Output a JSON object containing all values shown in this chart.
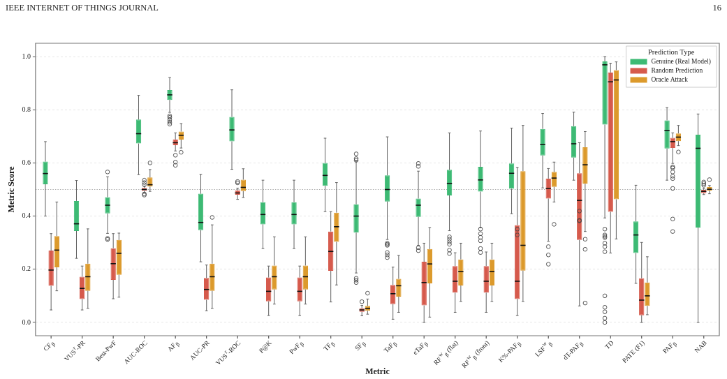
{
  "chart_data": {
    "type": "box",
    "annotations": [
      "IEEE INTERNET OF THINGS JOURNAL",
      "16"
    ],
    "xlabel": "Metric",
    "ylabel": "Metric Score",
    "legend_title": "Prediction Type",
    "legend": "top right",
    "grid": "y",
    "categories": [
      "CF$_{β}$",
      "VUS$^{r}$-PR",
      "Best-PwF",
      "AUC-ROC",
      "AF$_{β}$",
      "AUC-PR",
      "VUS$^{r}$-ROC",
      "P@K",
      "PwF$_{β}$",
      "TF$_{β}$",
      "SF$_{β}$",
      "TaF$_{β}$",
      "eTaF$_{β}$",
      "RF$^{w}$$_{β}$ (flat)",
      "RF$^{w}$$_{β}$ (front)",
      "K%-PAF$_{β}$",
      "LSF$^{w}$$_{β}$",
      "dT-PAF$_{β}$",
      "TD",
      "PATE (F1)",
      "PAF$_{β}$",
      "NAB"
    ],
    "ylim": [
      -0.05,
      1.05
    ],
    "yticks": [
      {
        "value": 0,
        "label": "0.0"
      },
      {
        "value": 0.2,
        "label": "0.2"
      },
      {
        "value": 0.4,
        "label": "0.4"
      },
      {
        "value": 0.6,
        "label": "0.6"
      },
      {
        "value": 0.8,
        "label": "0.8"
      },
      {
        "value": 1,
        "label": "1.0"
      }
    ],
    "ref_lines": [
      {
        "axis": "y",
        "value": 0.5,
        "color": "#b0b0b0",
        "line_style": "dotted"
      }
    ],
    "series": [
      {
        "name": "Genuine (Real Model)",
        "color": "#3dba74",
        "boxes": [
          {
            "low": 0.4,
            "q1": 0.52,
            "median": 0.56,
            "q3": 0.605,
            "high": 0.68
          },
          {
            "low": 0.241,
            "q1": 0.344,
            "median": 0.371,
            "q3": 0.457,
            "high": 0.534
          },
          {
            "low": 0.335,
            "q1": 0.41,
            "median": 0.441,
            "q3": 0.471,
            "high": 0.548,
            "outliers": [
              0.566,
              0.316,
              0.312
            ]
          },
          {
            "low": 0.556,
            "q1": 0.673,
            "median": 0.71,
            "q3": 0.763,
            "high": 0.854
          },
          {
            "low": 0.79,
            "q1": 0.837,
            "median": 0.856,
            "q3": 0.874,
            "high": 0.921,
            "outliers": [
              0.777,
              0.771,
              0.762,
              0.753,
              0.746
            ]
          },
          {
            "low": 0.228,
            "q1": 0.347,
            "median": 0.376,
            "q3": 0.484,
            "high": 0.557
          },
          {
            "low": 0.576,
            "q1": 0.681,
            "median": 0.724,
            "q3": 0.773,
            "high": 0.875
          },
          {
            "low": 0.278,
            "q1": 0.369,
            "median": 0.406,
            "q3": 0.452,
            "high": 0.535
          },
          {
            "low": 0.278,
            "q1": 0.369,
            "median": 0.406,
            "q3": 0.452,
            "high": 0.535
          },
          {
            "low": 0.417,
            "q1": 0.514,
            "median": 0.553,
            "q3": 0.6,
            "high": 0.693
          },
          {
            "low": 0.186,
            "q1": 0.338,
            "median": 0.4,
            "q3": 0.444,
            "high": 0.607,
            "outliers": [
              0.634,
              0.616,
              0.61,
              0.166,
              0.159,
              0.15
            ]
          },
          {
            "low": 0.312,
            "q1": 0.455,
            "median": 0.5,
            "q3": 0.553,
            "high": 0.698,
            "outliers": [
              0.298,
              0.294,
              0.29,
              0.263,
              0.254,
              0.244
            ]
          },
          {
            "low": 0.29,
            "q1": 0.397,
            "median": 0.441,
            "q3": 0.466,
            "high": 0.569,
            "outliers": [
              0.598,
              0.587,
              0.281,
              0.27
            ]
          },
          {
            "low": 0.345,
            "q1": 0.478,
            "median": 0.523,
            "q3": 0.574,
            "high": 0.713,
            "outliers": [
              0.322,
              0.313,
              0.303,
              0.294,
              0.272,
              0.259
            ]
          },
          {
            "low": 0.356,
            "q1": 0.492,
            "median": 0.536,
            "q3": 0.585,
            "high": 0.72,
            "outliers": [
              0.351,
              0.334,
              0.32,
              0.307,
              0.278,
              0.263
            ]
          },
          {
            "low": 0.409,
            "q1": 0.503,
            "median": 0.561,
            "q3": 0.598,
            "high": 0.731
          },
          {
            "low": 0.506,
            "q1": 0.628,
            "median": 0.669,
            "q3": 0.728,
            "high": 0.786
          },
          {
            "low": 0.535,
            "q1": 0.62,
            "median": 0.672,
            "q3": 0.738,
            "high": 0.791
          },
          {
            "low": 0.393,
            "q1": 0.744,
            "median": 0.969,
            "q3": 0.982,
            "high": 1.0,
            "outliers": [
              0.351,
              0.329,
              0.324,
              0.319,
              0.298,
              0.285,
              0.266,
              0.1,
              0.057,
              0.04,
              0.016,
              0.0
            ]
          },
          {
            "low": 0.147,
            "q1": 0.261,
            "median": 0.329,
            "q3": 0.38,
            "high": 0.516
          },
          {
            "low": 0.535,
            "q1": 0.654,
            "median": 0.722,
            "q3": 0.76,
            "high": 0.808
          },
          {
            "low": 0.0,
            "q1": 0.357,
            "median": 0.655,
            "q3": 0.706,
            "high": 0.784
          }
        ]
      },
      {
        "name": "Random Prediction",
        "color": "#d65a4c",
        "boxes": [
          {
            "low": 0.047,
            "q1": 0.138,
            "median": 0.197,
            "q3": 0.27,
            "high": 0.334
          },
          {
            "low": 0.047,
            "q1": 0.088,
            "median": 0.128,
            "q3": 0.172,
            "high": 0.212
          },
          {
            "low": 0.089,
            "q1": 0.16,
            "median": 0.221,
            "q3": 0.279,
            "high": 0.334
          },
          {
            "low": 0.488,
            "q1": 0.495,
            "median": 0.5,
            "q3": 0.506,
            "high": 0.513,
            "outliers": [
              0.535,
              0.526,
              0.518,
              0.483,
              0.479
            ]
          },
          {
            "low": 0.645,
            "q1": 0.667,
            "median": 0.676,
            "q3": 0.688,
            "high": 0.713,
            "outliers": [
              0.629,
              0.603,
              0.591
            ]
          },
          {
            "low": 0.044,
            "q1": 0.085,
            "median": 0.124,
            "q3": 0.167,
            "high": 0.216
          },
          {
            "low": 0.463,
            "q1": 0.48,
            "median": 0.487,
            "q3": 0.497,
            "high": 0.505,
            "outliers": [
              0.53,
              0.525
            ]
          },
          {
            "low": 0.026,
            "q1": 0.079,
            "median": 0.117,
            "q3": 0.169,
            "high": 0.212
          },
          {
            "low": 0.026,
            "q1": 0.079,
            "median": 0.117,
            "q3": 0.169,
            "high": 0.212
          },
          {
            "low": 0.077,
            "q1": 0.194,
            "median": 0.267,
            "q3": 0.342,
            "high": 0.417
          },
          {
            "low": 0.025,
            "q1": 0.04,
            "median": 0.047,
            "q3": 0.053,
            "high": 0.064,
            "outliers": [
              0.078
            ]
          },
          {
            "low": 0.012,
            "q1": 0.069,
            "median": 0.108,
            "q3": 0.141,
            "high": 0.208
          },
          {
            "low": 0.0,
            "q1": 0.064,
            "median": 0.15,
            "q3": 0.228,
            "high": 0.298
          },
          {
            "low": 0.038,
            "q1": 0.112,
            "median": 0.155,
            "q3": 0.212,
            "high": 0.262
          },
          {
            "low": 0.038,
            "q1": 0.112,
            "median": 0.155,
            "q3": 0.212,
            "high": 0.265
          },
          {
            "low": 0.026,
            "q1": 0.088,
            "median": 0.155,
            "q3": 0.366,
            "high": 0.583,
            "outliers": [
              0.351,
              0.329
            ]
          },
          {
            "low": 0.305,
            "q1": 0.466,
            "median": 0.504,
            "q3": 0.541,
            "high": 0.579,
            "outliers": [
              0.285,
              0.254,
              0.219
            ]
          },
          {
            "low": 0.062,
            "q1": 0.31,
            "median": 0.459,
            "q3": 0.561,
            "high": 0.676,
            "outliers": [
              0.419,
              0.384,
              0.382
            ]
          },
          {
            "low": 0.261,
            "q1": 0.416,
            "median": 0.905,
            "q3": 0.94,
            "high": 0.975
          },
          {
            "low": 0.0,
            "q1": 0.027,
            "median": 0.084,
            "q3": 0.166,
            "high": 0.301
          },
          {
            "low": 0.598,
            "q1": 0.656,
            "median": 0.68,
            "q3": 0.694,
            "high": 0.713,
            "outliers": [
              0.585,
              0.581,
              0.566,
              0.55,
              0.541,
              0.504,
              0.389,
              0.342
            ]
          },
          {
            "low": 0.481,
            "q1": 0.486,
            "median": 0.493,
            "q3": 0.499,
            "high": 0.505,
            "outliers": [
              0.528,
              0.522,
              0.516
            ]
          }
        ]
      },
      {
        "name": "Oracle Attack",
        "color": "#dc9a2c",
        "boxes": [
          {
            "low": 0.119,
            "q1": 0.207,
            "median": 0.272,
            "q3": 0.325,
            "high": 0.453
          },
          {
            "low": 0.053,
            "q1": 0.119,
            "median": 0.172,
            "q3": 0.221,
            "high": 0.352
          },
          {
            "low": 0.095,
            "q1": 0.179,
            "median": 0.26,
            "q3": 0.31,
            "high": 0.336
          },
          {
            "low": 0.493,
            "q1": 0.511,
            "median": 0.518,
            "q3": 0.545,
            "high": 0.575,
            "outliers": [
              0.6
            ]
          },
          {
            "low": 0.656,
            "q1": 0.688,
            "median": 0.704,
            "q3": 0.718,
            "high": 0.748,
            "outliers": [
              0.64
            ]
          },
          {
            "low": 0.053,
            "q1": 0.119,
            "median": 0.172,
            "q3": 0.221,
            "high": 0.367,
            "outliers": [
              0.395
            ]
          },
          {
            "low": 0.47,
            "q1": 0.494,
            "median": 0.508,
            "q3": 0.537,
            "high": 0.578
          },
          {
            "low": 0.069,
            "q1": 0.124,
            "median": 0.172,
            "q3": 0.214,
            "high": 0.322
          },
          {
            "low": 0.069,
            "q1": 0.124,
            "median": 0.172,
            "q3": 0.214,
            "high": 0.322
          },
          {
            "low": 0.141,
            "q1": 0.303,
            "median": 0.36,
            "q3": 0.413,
            "high": 0.526
          },
          {
            "low": 0.031,
            "q1": 0.044,
            "median": 0.053,
            "q3": 0.062,
            "high": 0.088,
            "outliers": [
              0.11
            ]
          },
          {
            "low": 0.038,
            "q1": 0.097,
            "median": 0.138,
            "q3": 0.164,
            "high": 0.252
          },
          {
            "low": 0.02,
            "q1": 0.147,
            "median": 0.22,
            "q3": 0.276,
            "high": 0.357
          },
          {
            "low": 0.079,
            "q1": 0.139,
            "median": 0.191,
            "q3": 0.237,
            "high": 0.298
          },
          {
            "low": 0.079,
            "q1": 0.139,
            "median": 0.191,
            "q3": 0.237,
            "high": 0.298
          },
          {
            "low": 0.079,
            "q1": 0.195,
            "median": 0.29,
            "q3": 0.569,
            "high": 0.741
          },
          {
            "low": 0.453,
            "q1": 0.51,
            "median": 0.543,
            "q3": 0.566,
            "high": 0.603,
            "outliers": [
              0.369
            ]
          },
          {
            "low": 0.342,
            "q1": 0.522,
            "median": 0.593,
            "q3": 0.659,
            "high": 0.718,
            "outliers": [
              0.313,
              0.275,
              0.073
            ]
          },
          {
            "low": 0.314,
            "q1": 0.463,
            "median": 0.912,
            "q3": 0.949,
            "high": 0.98
          },
          {
            "low": 0.029,
            "q1": 0.062,
            "median": 0.1,
            "q3": 0.15,
            "high": 0.247
          },
          {
            "low": 0.665,
            "q1": 0.682,
            "median": 0.697,
            "q3": 0.711,
            "high": 0.741,
            "outliers": [
              0.641
            ]
          },
          {
            "low": 0.484,
            "q1": 0.496,
            "median": 0.501,
            "q3": 0.509,
            "high": 0.515,
            "outliers": [
              0.537
            ]
          }
        ]
      }
    ]
  }
}
